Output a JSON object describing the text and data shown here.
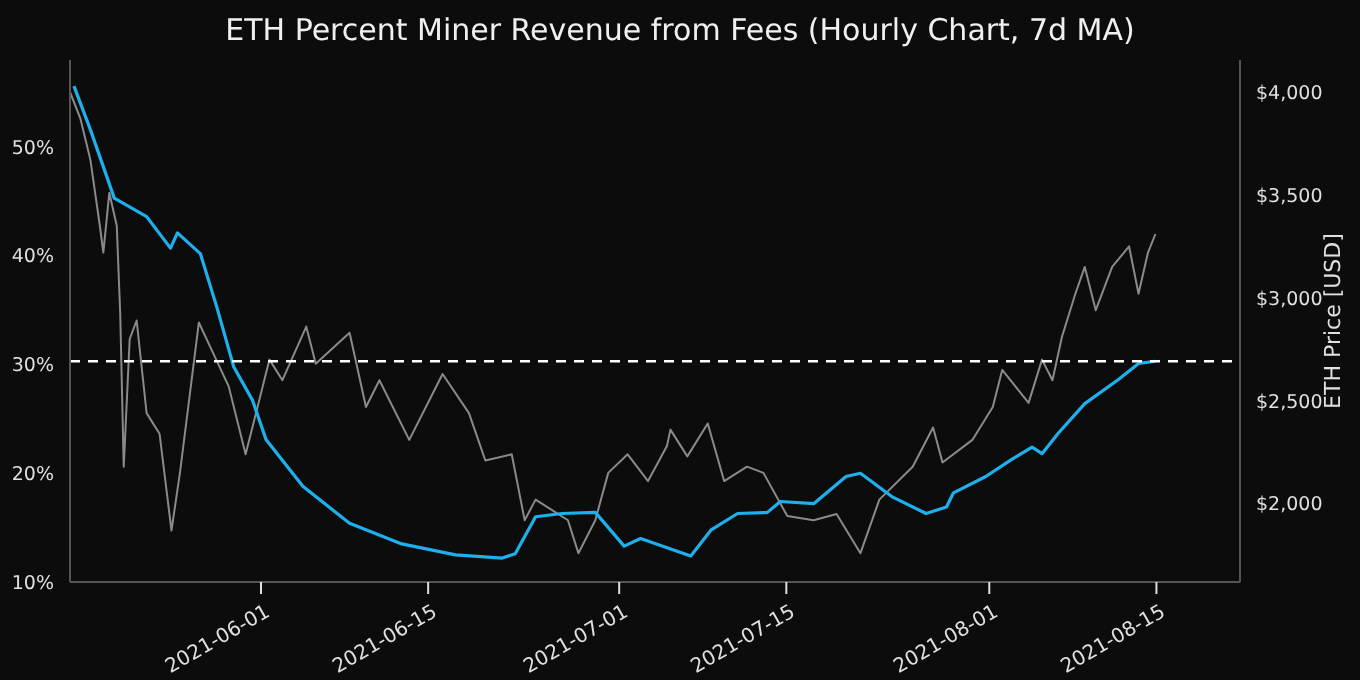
{
  "chart_data": {
    "type": "line",
    "title": "ETH Percent Miner Revenue from Fees (Hourly Chart, 7d MA)",
    "y2label": "ETH Price [USD]",
    "xlim": [
      "2021-05-16",
      "2021-08-22"
    ],
    "xticks": [
      "2021-06-01",
      "2021-06-15",
      "2021-07-01",
      "2021-07-15",
      "2021-08-01",
      "2021-08-15"
    ],
    "ylim": [
      10,
      58
    ],
    "yticks": [
      {
        "value": 10,
        "label": "10%"
      },
      {
        "value": 20,
        "label": "20%"
      },
      {
        "value": 30,
        "label": "30%"
      },
      {
        "value": 40,
        "label": "40%"
      },
      {
        "value": 50,
        "label": "50%"
      }
    ],
    "y2lim": [
      1620,
      4155
    ],
    "y2ticks": [
      {
        "value": 2000,
        "label": "$2,000"
      },
      {
        "value": 2500,
        "label": "$2,500"
      },
      {
        "value": 3000,
        "label": "$3,000"
      },
      {
        "value": 3500,
        "label": "$3,500"
      },
      {
        "value": 4000,
        "label": "$4,000"
      }
    ],
    "grid": false,
    "legend": false,
    "marker": "none",
    "line_style": "solid",
    "ref_lines": [
      {
        "axis": "y",
        "value": 30.3,
        "color": "#ffffff",
        "line_style": "dashed"
      }
    ],
    "series": [
      {
        "axis": "y2",
        "color": "#8a8a8a",
        "x": [
          "2021-05-16T00:00",
          "2021-05-16T21:00",
          "2021-05-17T17:00",
          "2021-05-18T12:00",
          "2021-05-18T19:00",
          "2021-05-19T07:00",
          "2021-05-19T22:00",
          "2021-05-20T05:00",
          "2021-05-20T12:00",
          "2021-05-21T00:00",
          "2021-05-21T14:00",
          "2021-05-22T10:00",
          "2021-05-23T12:00",
          "2021-05-24T12:00",
          "2021-05-25T05:00",
          "2021-05-26T19:00",
          "2021-05-28T00:00",
          "2021-05-29T07:00",
          "2021-05-30T17:00",
          "2021-06-01T17:00",
          "2021-06-02T19:00",
          "2021-06-04T19:00",
          "2021-06-05T14:00",
          "2021-06-08T10:00",
          "2021-06-09T19:00",
          "2021-06-10T22:00",
          "2021-06-13T10:00",
          "2021-06-16T05:00",
          "2021-06-18T10:00",
          "2021-06-19T19:00",
          "2021-06-22T00:00",
          "2021-06-23T02:00",
          "2021-06-24T00:00",
          "2021-06-26T17:00",
          "2021-06-27T14:00",
          "2021-06-29T00:00",
          "2021-06-30T02:00",
          "2021-07-01T17:00",
          "2021-07-03T10:00",
          "2021-07-05T00:00",
          "2021-07-05T07:00",
          "2021-07-06T17:00",
          "2021-07-08T10:00",
          "2021-07-09T19:00",
          "2021-07-11T17:00",
          "2021-07-13T02:00",
          "2021-07-15T02:00",
          "2021-07-17T07:00",
          "2021-07-19T05:00",
          "2021-07-21T05:00",
          "2021-07-22T19:00",
          "2021-07-25T14:00",
          "2021-07-27T07:00",
          "2021-07-28T02:00",
          "2021-07-30T14:00",
          "2021-08-01T07:00",
          "2021-08-02T02:00",
          "2021-08-04T07:00",
          "2021-08-05T10:00",
          "2021-08-06T07:00",
          "2021-08-07T02:00",
          "2021-08-08T05:00",
          "2021-08-09T00:00",
          "2021-08-09T22:00",
          "2021-08-11T07:00",
          "2021-08-12T17:00",
          "2021-08-13T12:00",
          "2021-08-14T07:00",
          "2021-08-14T22:00"
        ],
        "values": [
          4000,
          3870,
          3670,
          3350,
          3220,
          3510,
          3350,
          2920,
          2180,
          2800,
          2890,
          2440,
          2340,
          1870,
          2150,
          2880,
          2730,
          2570,
          2240,
          2700,
          2600,
          2860,
          2680,
          2830,
          2470,
          2600,
          2310,
          2630,
          2440,
          2210,
          2240,
          1920,
          2020,
          1920,
          1760,
          1920,
          2150,
          2240,
          2110,
          2280,
          2360,
          2230,
          2390,
          2110,
          2180,
          2150,
          1940,
          1920,
          1950,
          1760,
          2020,
          2180,
          2370,
          2200,
          2310,
          2470,
          2650,
          2490,
          2700,
          2600,
          2810,
          3020,
          3150,
          2940,
          3150,
          3250,
          3020,
          3220,
          3310
        ]
      },
      {
        "axis": "y",
        "color": "#1eb0ec",
        "x": [
          "2021-05-16T08:00",
          "2021-05-17T17:00",
          "2021-05-19T17:00",
          "2021-05-22T10:00",
          "2021-05-24T10:00",
          "2021-05-25T00:00",
          "2021-05-26T22:00",
          "2021-05-28T07:00",
          "2021-05-29T17:00",
          "2021-05-31T07:00",
          "2021-06-01T10:00",
          "2021-06-04T12:00",
          "2021-06-08T10:00",
          "2021-06-12T19:00",
          "2021-06-17T07:00",
          "2021-06-21T05:00",
          "2021-06-22T07:00",
          "2021-06-24T00:00",
          "2021-06-26T05:00",
          "2021-06-29T00:00",
          "2021-07-01T10:00",
          "2021-07-02T19:00",
          "2021-07-05T22:00",
          "2021-07-07T00:00",
          "2021-07-08T17:00",
          "2021-07-10T22:00",
          "2021-07-13T10:00",
          "2021-07-14T12:00",
          "2021-07-17T07:00",
          "2021-07-20T00:00",
          "2021-07-21T05:00",
          "2021-07-23T22:00",
          "2021-07-26T17:00",
          "2021-07-28T10:00",
          "2021-07-29T00:00",
          "2021-07-31T17:00",
          "2021-08-02T22:00",
          "2021-08-04T14:00",
          "2021-08-05T10:00",
          "2021-08-06T19:00",
          "2021-08-09T00:00",
          "2021-08-11T19:00",
          "2021-08-13T12:00",
          "2021-08-14T22:00"
        ],
        "values": [
          55.6,
          51.6,
          45.3,
          43.6,
          40.7,
          42.1,
          40.2,
          35.3,
          29.8,
          26.7,
          23.1,
          18.8,
          15.4,
          13.5,
          12.5,
          12.2,
          12.6,
          16.0,
          16.3,
          16.4,
          13.3,
          14.0,
          12.8,
          12.4,
          14.8,
          16.3,
          16.4,
          17.4,
          17.2,
          19.7,
          20.0,
          17.8,
          16.3,
          16.9,
          18.2,
          19.7,
          21.3,
          22.4,
          21.8,
          23.7,
          26.4,
          28.6,
          30.1,
          30.3
        ]
      }
    ]
  }
}
